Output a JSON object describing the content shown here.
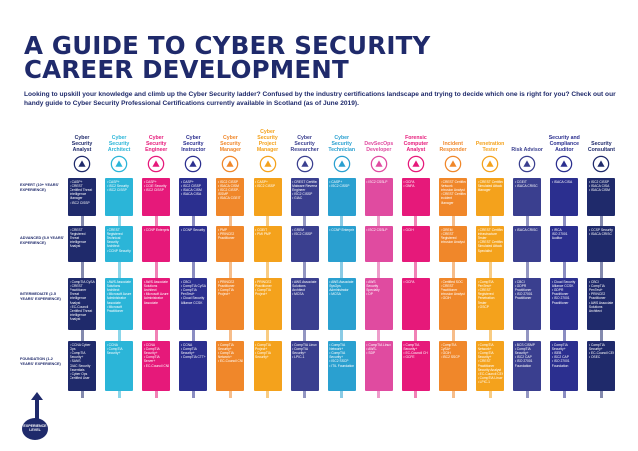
{
  "title_line1": "A GUIDE TO CYBER SECURITY",
  "title_line2": "CAREER DEVELOPMENT",
  "subtitle": "Looking to upskill your knowledge and climb up the Cyber Security ladder? Confused by the industry certifications landscape and trying to decide which one is right for you? Check out our handy guide to Cyber Security Professional Certifications currently available in Scotland (as of June 2019).",
  "levels": [
    {
      "id": "expert",
      "label": "EXPERT (10+ YEARS' EXPERIENCE)"
    },
    {
      "id": "advanced",
      "label": "ADVANCED (5-9 YEARS' EXPERIENCE)"
    },
    {
      "id": "intermediate",
      "label": "INTERMEDIATE (2-5 YEARS' EXPERIENCE)"
    },
    {
      "id": "foundation",
      "label": "FOUNDATION (1-2 YEARS' EXPERIENCE)"
    }
  ],
  "experience_label": "EXPERIENCE LEVEL",
  "roles": [
    {
      "name": "Cyber Security Analyst",
      "color": "#1f2a6b",
      "icon": "analyst-shield-icon",
      "expert": [
        "• CASP+",
        "• CREST",
        "Certified Threat",
        "Intelligence",
        "Manager",
        "• ISC2 CISSP"
      ],
      "advanced": [
        "• CREST",
        "Registered",
        "Threat",
        "Intelligence",
        "Analyst"
      ],
      "intermediate": [
        "• CompTIA CySA+",
        "• CREST",
        "Practitioner",
        "Threat",
        "Intelligence",
        "Analyst",
        "• EC-Council",
        "Certified Threat",
        "Intelligence",
        "Analyst"
      ],
      "foundation": [
        "• CCNA Cyber",
        "Ops",
        "• CompTIA",
        "Security+",
        "• SANS",
        "GIAC Security",
        "Essentials",
        "• Cyber Ops",
        "Certified User"
      ]
    },
    {
      "name": "Cyber Security Architect",
      "color": "#2bb5d8",
      "icon": "architect-network-icon",
      "expert": [
        "• CASP+",
        "• ISC2 Security",
        "• ISC2 CISSP"
      ],
      "advanced": [
        "• CREST",
        "Registered",
        "Technical",
        "Security",
        "Architect",
        "• CCNP Security"
      ],
      "intermediate": [
        "• AWS Associate",
        "Solutions",
        "Architect",
        "• Microsoft Azure",
        "Administrator",
        "Associate",
        "• Microsoft",
        "Practitioner"
      ],
      "foundation": [
        "• CCNA",
        "• CompTIA",
        "Security+"
      ]
    },
    {
      "name": "Cyber Security Engineer",
      "color": "#e6197a",
      "icon": "engineer-gear-icon",
      "expert": [
        "• CASP+",
        "• CCIE Security",
        "• ISC2 CISSP"
      ],
      "advanced": [
        "• CCNP Enterprise"
      ],
      "intermediate": [
        "• AWS Associate",
        "Solutions",
        "Architect",
        "• Microsoft Azure",
        "Administrator",
        "Associate"
      ],
      "foundation": [
        "• CCNA",
        "• CompTIA",
        "Security+",
        "• CompTIA",
        "Server+",
        "• EC-Council CND"
      ]
    },
    {
      "name": "Cyber Security Instructor",
      "color": "#2b2f8f",
      "icon": "instructor-board-icon",
      "expert": [
        "• CASP+",
        "• ISC2 CISSP",
        "• ISACA CISM",
        "• ISACA CISA"
      ],
      "advanced": [
        "• CCNP Security"
      ],
      "intermediate": [
        "• CBCI",
        "• CompTIA CySA+",
        "• CompTIA",
        "PenTest+",
        "• Cloud Security",
        "Alliance CCSK"
      ],
      "foundation": [
        "• CCNA",
        "• CompTIA",
        "Security+",
        "• CompTIA CTT+"
      ]
    },
    {
      "name": "Cyber Security Manager",
      "color": "#f0872a",
      "icon": "manager-chart-icon",
      "expert": [
        "• ISC2 CISSP",
        "• ISACA CISM",
        "• ISC2 CISSP-",
        "ISSMP",
        "• ISACA CGEIT"
      ],
      "advanced": [
        "• PMP",
        "• PRINCE2",
        "Practitioner"
      ],
      "intermediate": [
        "• PRINCE2",
        "Practitioner",
        "• CompTIA",
        "Project+"
      ],
      "foundation": [
        "• CompTIA",
        "Security+",
        "• CompTIA",
        "Network+",
        "• EC-Council CND"
      ]
    },
    {
      "name": "Cyber Security Project Manager",
      "color": "#f4a21c",
      "icon": "project-manager-icon",
      "expert": [
        "• CASP+",
        "• ISC2 CISSP"
      ],
      "advanced": [
        "• CGEIT",
        "• PMI PMP"
      ],
      "intermediate": [
        "• PRINCE2",
        "Practitioner",
        "• CompTIA",
        "Project+"
      ],
      "foundation": [
        "• CompTIA",
        "Project+",
        "• CompTIA",
        "Security+"
      ]
    },
    {
      "name": "Cyber Security Researcher",
      "color": "#3a3f8f",
      "icon": "researcher-magnifier-icon",
      "expert": [
        "• CREST Certified",
        "Malware Reverse",
        "Engineer",
        "• ISC2 CISSP",
        "• GIAC"
      ],
      "advanced": [
        "• GREM",
        "• ISC2 CISSP"
      ],
      "intermediate": [
        "• AWS Associate",
        "Solutions",
        "Architect",
        "• MCSA"
      ],
      "foundation": [
        "• CompTIA Linux+",
        "• CompTIA",
        "Security+",
        "• LPIC-1"
      ]
    },
    {
      "name": "Cyber Security Technician",
      "color": "#2aa0d0",
      "icon": "technician-tools-icon",
      "expert": [
        "• CASP+",
        "• ISC2 CISSP"
      ],
      "advanced": [
        "• CCNP Enterprise"
      ],
      "intermediate": [
        "• AWS Associate",
        "SysOps",
        "Administrator",
        "• MCSA"
      ],
      "foundation": [
        "• CompTIA",
        "Network+",
        "• CompTIA",
        "Security+",
        "• ISC2 SSCP",
        "• ITIL Foundation"
      ]
    },
    {
      "name": "DevSecOps Developer",
      "color": "#e04ba0",
      "icon": "devsecops-code-icon",
      "expert": [
        "• ISC2 CSSLP"
      ],
      "advanced": [
        "• ISC2 CSSLP"
      ],
      "intermediate": [
        "• AWS",
        "Security",
        "Specialty",
        "• DP"
      ],
      "foundation": [
        "• CompTIA Linux+",
        "• AWS-",
        "• SDP"
      ]
    },
    {
      "name": "Forensic Computer Analyst",
      "color": "#e6197a",
      "icon": "forensic-fingerprint-icon",
      "expert": [
        "• GCFA",
        "• GNFA"
      ],
      "advanced": [
        "• GCIH"
      ],
      "intermediate": [
        "• GCFA"
      ],
      "foundation": [
        "• CompTIA",
        "Security+",
        "• EC-Council CHFI",
        "• GCFE"
      ]
    },
    {
      "name": "Incident Responder",
      "color": "#f0872a",
      "icon": "incident-warning-icon",
      "expert": [
        "• CREST Certified",
        "Network",
        "Intrusion Analyst",
        "• CREST Certified",
        "Incident",
        "Manager"
      ],
      "advanced": [
        "• GREM",
        "• CREST",
        "Registered",
        "Intrusion Analyst"
      ],
      "intermediate": [
        "• Certified SOC",
        "• CREST",
        "Practitioner",
        "Intrusion Analyst",
        "• GCIH"
      ],
      "foundation": [
        "• CompTIA",
        "CySA+",
        "• GCIH",
        "• ISC2 SSCP"
      ]
    },
    {
      "name": "Penetration Tester",
      "color": "#f4a21c",
      "icon": "pentester-target-icon",
      "expert": [
        "• CREST Certified",
        "Simulated Attack",
        "Manager"
      ],
      "advanced": [
        "• CREST Certified",
        "Infrastructure",
        "Tester",
        "• CREST Certified",
        "Simulated Attack",
        "Specialist"
      ],
      "intermediate": [
        "• CompTIA",
        "PenTest+",
        "• CREST",
        "Registered",
        "Penetration",
        "Tester",
        "• OSCP"
      ],
      "foundation": [
        "• CompTIA",
        "Network+",
        "• CompTIA",
        "Security+",
        "• CREST",
        "Practitioner",
        "Security Analyst",
        "• EC-Council CEH",
        "• CompTIA Linux+",
        "• LPIC-1"
      ]
    },
    {
      "name": "Risk Advisor",
      "color": "#3a3f8f",
      "icon": "risk-scale-icon",
      "expert": [
        "• CGEIT",
        "• ISACA CRISC"
      ],
      "advanced": [
        "• ISACA CRISC"
      ],
      "intermediate": [
        "• CBCI",
        "• GDPR",
        "Practitioner",
        "• ISO 27001",
        "Practitioner"
      ],
      "foundation": [
        "• BCS CISMP",
        "• CompTIA",
        "Security+",
        "• ISC2 CAP",
        "• ISO 27001",
        "Foundation"
      ]
    },
    {
      "name": "Security and Compliance Auditor",
      "color": "#2b2f8f",
      "icon": "auditor-clipboard-icon",
      "expert": [
        "• ISACA CISA"
      ],
      "advanced": [
        "• IRCA",
        "ISO 27001",
        "Auditor"
      ],
      "intermediate": [
        "• Cloud Security",
        "Alliance CCSK",
        "• GDPR",
        "Practitioner",
        "• ISO 27001",
        "Practitioner"
      ],
      "foundation": [
        "• CompTIA",
        "Security+",
        "• ISEB",
        "• ISC2 CAP",
        "• ISO 27001",
        "Foundation"
      ]
    },
    {
      "name": "Security Consultant",
      "color": "#1f2a6b",
      "icon": "consultant-person-icon",
      "expert": [
        "• ISC2 CISSP",
        "• ISACA CISA",
        "• ISACA CISM"
      ],
      "advanced": [
        "• CCSP Security",
        "• ISACA CRISC"
      ],
      "intermediate": [
        "• CBCI",
        "• CompTIA",
        "PenTest+",
        "• PRINCE2",
        "Practitioner",
        "• AWS Associate",
        "Solutions",
        "Architect"
      ],
      "foundation": [
        "• CompTIA",
        "Security+",
        "• EC-Council CEH",
        "• OSEC"
      ]
    }
  ]
}
